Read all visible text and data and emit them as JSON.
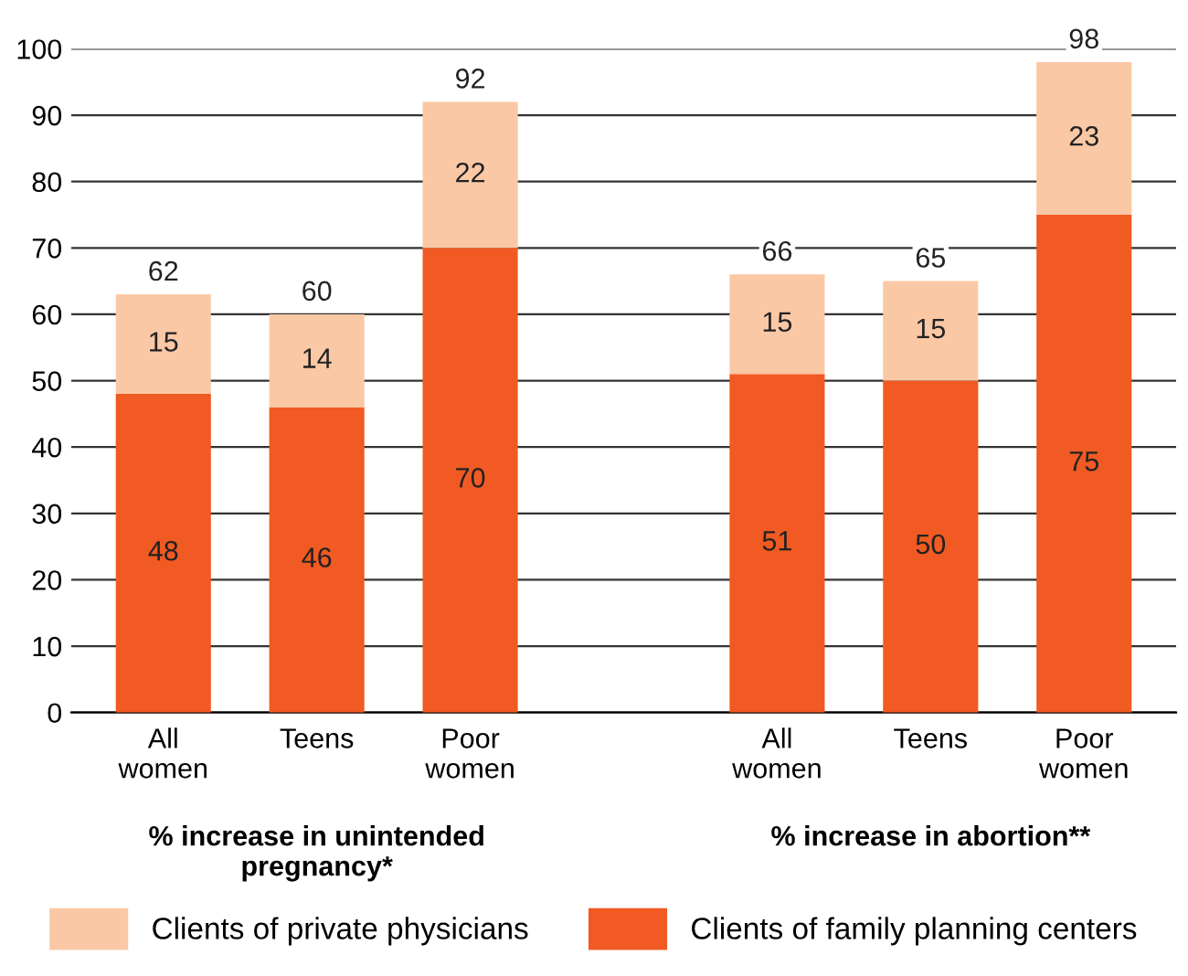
{
  "chart_data": {
    "type": "bar",
    "stacked": true,
    "categories": [
      "All\nwomen",
      "Teens",
      "Poor\nwomen",
      null,
      "All\nwomen",
      "Teens",
      "Poor\nwomen"
    ],
    "series": [
      {
        "name": "Clients of family planning centers",
        "color": "#f15a22",
        "values": [
          48,
          46,
          70,
          null,
          51,
          50,
          75
        ]
      },
      {
        "name": "Clients of private physicians",
        "color": "#fbc8a5",
        "values": [
          15,
          14,
          22,
          null,
          15,
          15,
          23
        ]
      }
    ],
    "totals": [
      "62",
      "60",
      "92",
      null,
      "66",
      "65",
      "98"
    ],
    "data_labels": true,
    "ylim": [
      0,
      100
    ],
    "yticks": [
      0,
      10,
      20,
      30,
      40,
      50,
      60,
      70,
      80,
      90,
      100
    ],
    "grid": "y",
    "legend": "bottom",
    "annotations": [
      "% increase in unintended\npregnancy*",
      "% increase in abortion**"
    ]
  }
}
